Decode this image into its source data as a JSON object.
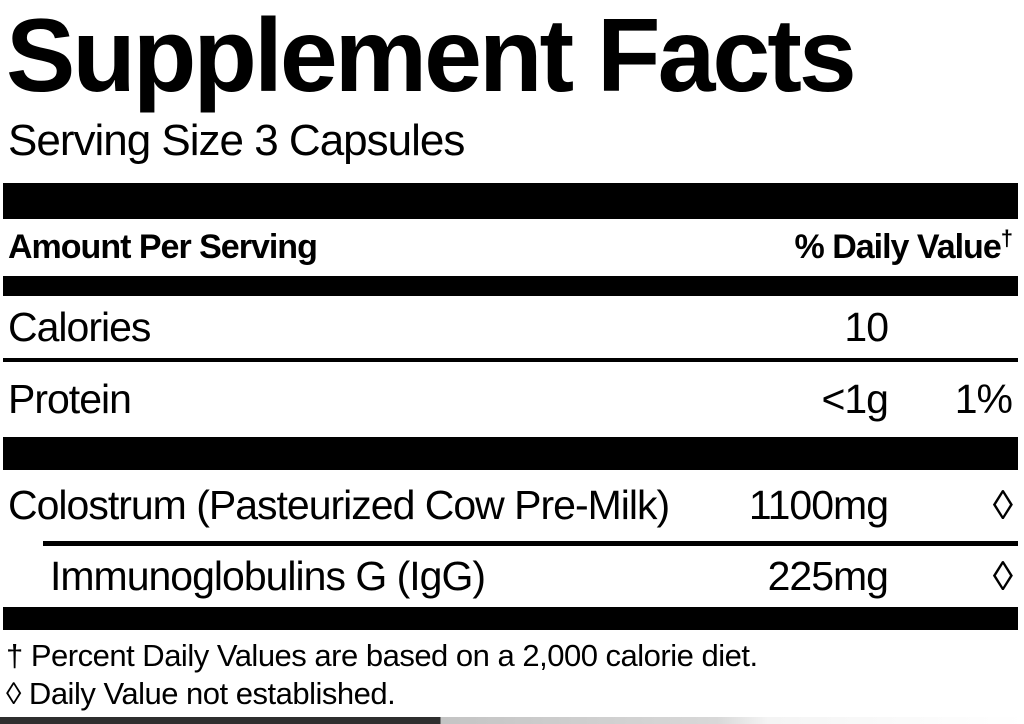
{
  "label": {
    "title": "Supplement Facts",
    "serving_size": "Serving Size 3 Capsules",
    "header": {
      "amount": "Amount Per Serving",
      "daily_value": "% Daily Value",
      "daily_value_mark": "†"
    },
    "rows": [
      {
        "name": "Calories",
        "amount": "10",
        "dv": ""
      },
      {
        "name": "Protein",
        "amount": "<1g",
        "dv": "1%"
      },
      {
        "name": "Colostrum (Pasteurized Cow Pre-Milk)",
        "amount": "1100mg",
        "dv": "◊"
      },
      {
        "name": "Immunoglobulins G (IgG)",
        "amount": "225mg",
        "dv": "◊"
      }
    ],
    "footnotes": [
      "† Percent Daily Values are based on a 2,000 calorie diet.",
      "◊ Daily Value not established."
    ],
    "colors": {
      "text": "#000000",
      "background": "#ffffff",
      "bar": "#000000"
    }
  }
}
